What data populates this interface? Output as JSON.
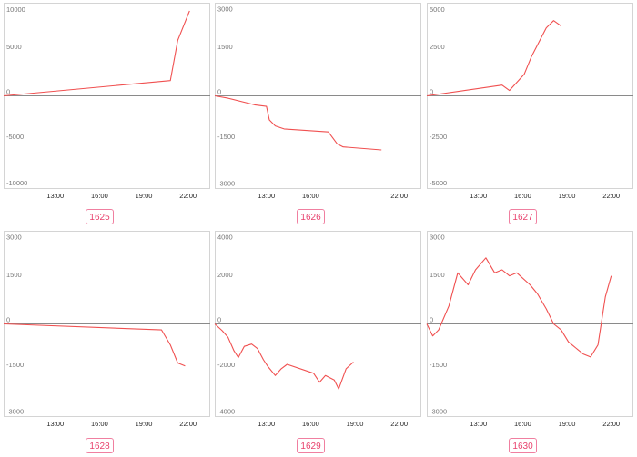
{
  "chart_data": [
    {
      "type": "line",
      "badge": "1625",
      "yticks": [
        10000,
        5000,
        0,
        -5000,
        -10000
      ],
      "ylim": [
        -10400,
        10400
      ],
      "xticks": [
        "13:00",
        "16:00",
        "19:00",
        "22:00"
      ],
      "xlim": [
        9.5,
        23.5
      ],
      "color": "#f05050",
      "x": [
        9.5,
        20.8,
        21.3,
        22.1
      ],
      "y": [
        0,
        1700,
        6200,
        9500
      ]
    },
    {
      "type": "line",
      "badge": "1626",
      "yticks": [
        3000,
        1500,
        0,
        -1500,
        -3000
      ],
      "ylim": [
        -3100,
        3100
      ],
      "xticks": [
        "13:00",
        "16:00",
        "22:00"
      ],
      "xlim": [
        9.5,
        23.5
      ],
      "color": "#f05050",
      "x": [
        9.5,
        10.4,
        12.2,
        13.0,
        13.2,
        13.6,
        14.2,
        17.2,
        17.8,
        18.2,
        20.8
      ],
      "y": [
        0,
        -80,
        -300,
        -350,
        -800,
        -1000,
        -1100,
        -1200,
        -1600,
        -1700,
        -1800
      ]
    },
    {
      "type": "line",
      "badge": "1627",
      "yticks": [
        5000,
        2500,
        0,
        -2500,
        -5000
      ],
      "ylim": [
        -5200,
        5200
      ],
      "xticks": [
        "13:00",
        "16:00",
        "19:00",
        "22:00"
      ],
      "xlim": [
        9.5,
        23.5
      ],
      "color": "#f05050",
      "x": [
        9.5,
        14.6,
        15.1,
        16.1,
        16.6,
        17.1,
        17.6,
        18.1,
        18.6
      ],
      "y": [
        0,
        600,
        300,
        1200,
        2200,
        3000,
        3800,
        4200,
        3900
      ]
    },
    {
      "type": "line",
      "badge": "1628",
      "yticks": [
        3000,
        1500,
        0,
        -1500,
        -3000
      ],
      "ylim": [
        -3100,
        3100
      ],
      "xticks": [
        "13:00",
        "16:00",
        "19:00",
        "22:00"
      ],
      "xlim": [
        9.5,
        23.5
      ],
      "color": "#f05050",
      "x": [
        9.5,
        20.2,
        20.8,
        21.3,
        21.8
      ],
      "y": [
        0,
        -200,
        -700,
        -1300,
        -1400
      ]
    },
    {
      "type": "line",
      "badge": "1629",
      "yticks": [
        4000,
        2000,
        0,
        -2000,
        -4000
      ],
      "ylim": [
        -4150,
        4150
      ],
      "xticks": [
        "13:00",
        "16:00",
        "19:00",
        "22:00"
      ],
      "xlim": [
        9.5,
        23.5
      ],
      "color": "#f05050",
      "x": [
        9.5,
        10.0,
        10.4,
        10.8,
        11.1,
        11.5,
        12.0,
        12.4,
        12.8,
        13.1,
        13.6,
        14.0,
        14.4,
        16.2,
        16.6,
        17.0,
        17.6,
        17.9,
        18.4,
        18.9
      ],
      "y": [
        0,
        -300,
        -600,
        -1200,
        -1500,
        -1000,
        -900,
        -1100,
        -1600,
        -1900,
        -2300,
        -2000,
        -1800,
        -2200,
        -2600,
        -2300,
        -2500,
        -2900,
        -2000,
        -1700
      ]
    },
    {
      "type": "line",
      "badge": "1630",
      "yticks": [
        3000,
        1500,
        0,
        -1500,
        -3000
      ],
      "ylim": [
        -3100,
        3100
      ],
      "xticks": [
        "13:00",
        "16:00",
        "19:00",
        "22:00"
      ],
      "xlim": [
        9.5,
        23.5
      ],
      "color": "#f05050",
      "x": [
        9.5,
        9.9,
        10.3,
        11.0,
        11.6,
        12.3,
        12.8,
        13.5,
        14.1,
        14.6,
        15.1,
        15.6,
        16.5,
        17.0,
        17.6,
        18.1,
        18.6,
        19.1,
        19.6,
        20.1,
        20.6,
        21.1,
        21.6,
        22.0
      ],
      "y": [
        0,
        -400,
        -200,
        600,
        1700,
        1300,
        1800,
        2200,
        1700,
        1800,
        1600,
        1700,
        1300,
        1000,
        500,
        0,
        -200,
        -600,
        -800,
        -1000,
        -1100,
        -700,
        900,
        1600
      ]
    }
  ]
}
